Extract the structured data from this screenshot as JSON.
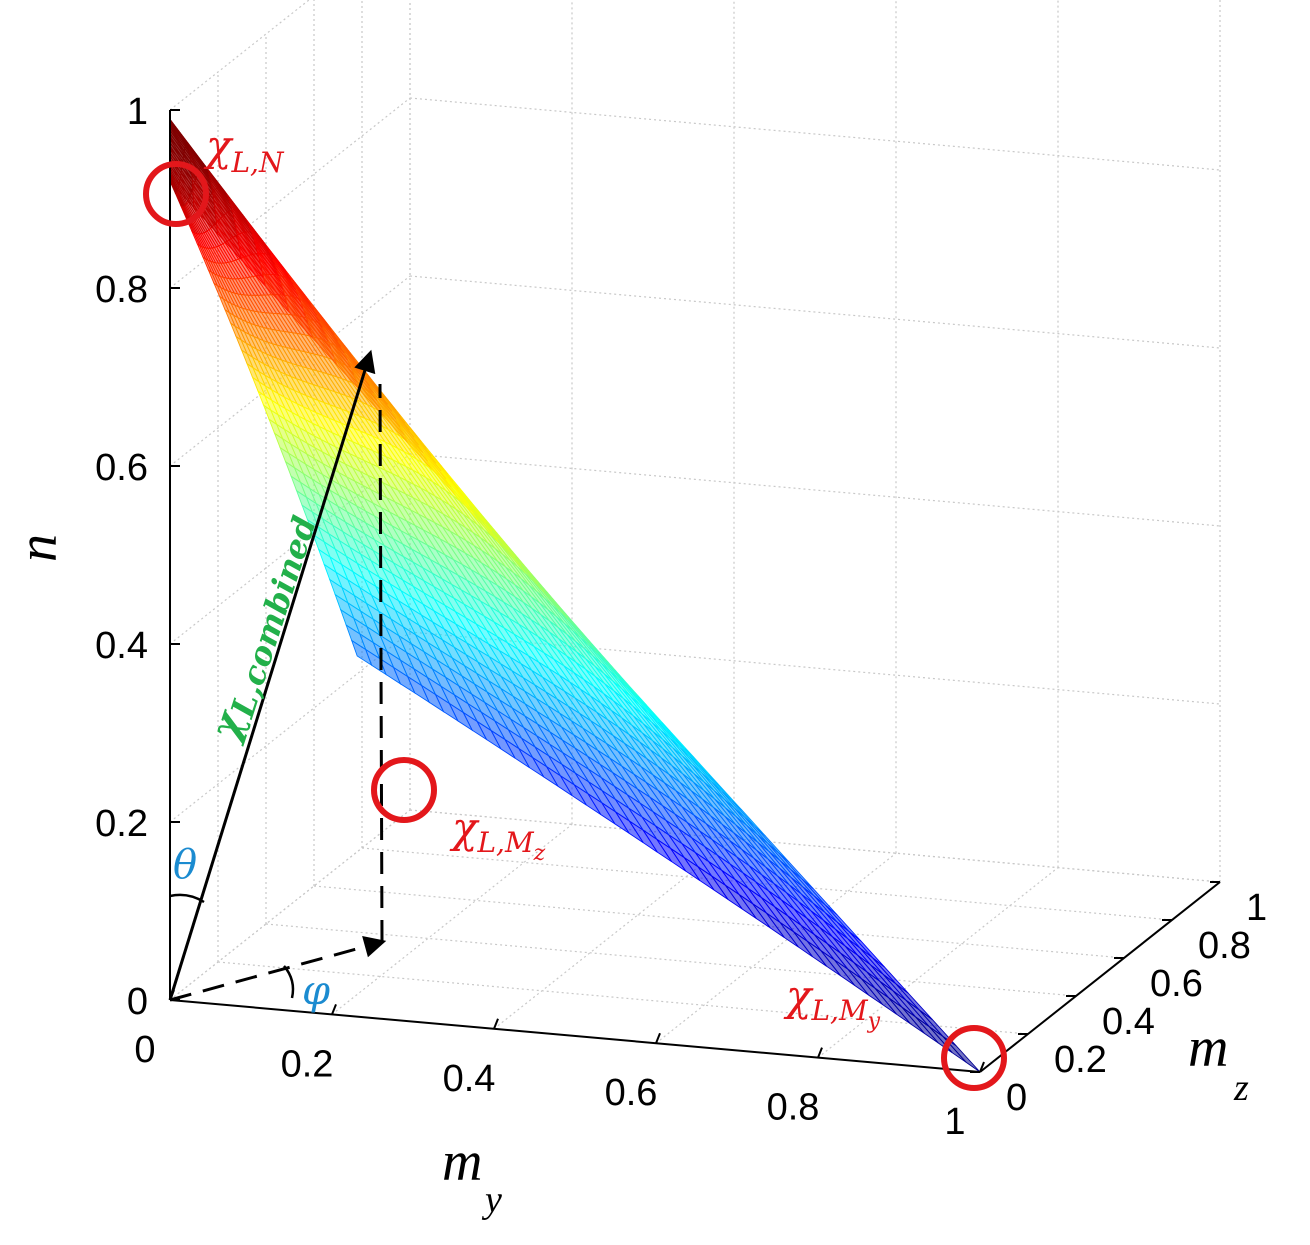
{
  "chart_data": {
    "type": "surface3d",
    "axes": {
      "x": {
        "title": "m",
        "subscript": "y",
        "range": [
          0,
          1
        ],
        "ticks": [
          "0",
          "0.2",
          "0.4",
          "0.6",
          "0.8",
          "1"
        ]
      },
      "y": {
        "title": "m",
        "subscript": "z",
        "range": [
          0,
          1
        ],
        "ticks": [
          "0",
          "0.2",
          "0.4",
          "0.6",
          "0.8",
          "1"
        ]
      },
      "z": {
        "title": "n",
        "range": [
          0,
          1
        ],
        "ticks": [
          "0",
          "0.2",
          "0.4",
          "0.6",
          "0.8",
          "1"
        ]
      }
    },
    "grid": true,
    "colormap": "jet",
    "surface_corners": {
      "axial": {
        "my": 0.0,
        "mz": 0.0,
        "n": 0.92
      },
      "mz_only": {
        "my": 0.0,
        "mz": 0.78,
        "n": 0.22
      },
      "my_only": {
        "my": 1.0,
        "mz": 0.0,
        "n": 0.0
      }
    },
    "annotations": {
      "chi_LN": {
        "main": "χ",
        "sub": "L,N"
      },
      "chi_LMz": {
        "main": "χ",
        "sub": "L,M",
        "subsub": "z"
      },
      "chi_LMy": {
        "main": "χ",
        "sub": "L,M",
        "subsub": "y"
      },
      "chi_combined": {
        "main": "χ",
        "sub": "L,combined"
      },
      "theta": "θ",
      "phi": "φ"
    },
    "colors": {
      "marker": "#e3171b",
      "combined_label": "#22b04a",
      "angle_label": "#1b8bd0"
    }
  }
}
